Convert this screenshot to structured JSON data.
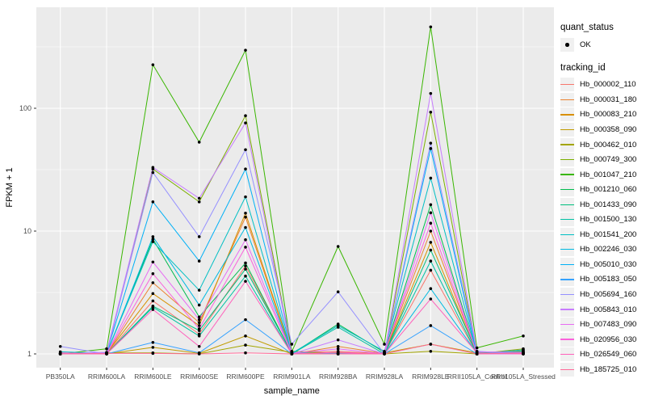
{
  "chart_data": {
    "type": "line",
    "title": "",
    "xlabel": "sample_name",
    "ylabel": "FPKM + 1",
    "y_scale": "log10",
    "y_ticks": [
      1,
      10,
      100
    ],
    "y_minor_ticks": [
      3.162,
      31.62,
      316.2
    ],
    "ylim": [
      0.88,
      550
    ],
    "grid": true,
    "panel_bg": "#EBEBEB",
    "grid_color": "#FFFFFF",
    "point_color": "#000000",
    "axis_text_color": "#4D4D4D",
    "legend_position": "right",
    "categories": [
      "PB350LA",
      "RRIM600LA",
      "RRIM600LE",
      "RRIM600SE",
      "RRIM600PE",
      "RRIM901LA",
      "RRIM928BA",
      "RRIM928LA",
      "RRIM928LE",
      "RRII105LA_Control",
      "RRII105LA_Stressed"
    ],
    "series": [
      {
        "name": "Hb_000002_110",
        "color": "#F8766D",
        "values": [
          1.0,
          1.0,
          2.7,
          1.45,
          5.2,
          1.02,
          1.05,
          1.0,
          4.8,
          1.0,
          1.01
        ]
      },
      {
        "name": "Hb_000031_180",
        "color": "#EA8331",
        "values": [
          1.01,
          1.0,
          3.8,
          1.8,
          13.0,
          1.0,
          1.15,
          1.01,
          10.0,
          1.01,
          1.0
        ]
      },
      {
        "name": "Hb_000083_210",
        "color": "#D89000",
        "values": [
          1.0,
          1.01,
          3.1,
          1.7,
          14.0,
          1.01,
          1.0,
          1.0,
          8.1,
          1.0,
          1.02
        ]
      },
      {
        "name": "Hb_000358_090",
        "color": "#C09B00",
        "values": [
          1.02,
          1.0,
          1.13,
          1.01,
          1.4,
          1.0,
          1.02,
          1.02,
          1.2,
          1.02,
          1.06
        ]
      },
      {
        "name": "Hb_000462_010",
        "color": "#A3A500",
        "values": [
          1.0,
          1.02,
          1.02,
          1.0,
          1.18,
          1.03,
          1.0,
          1.0,
          1.05,
          1.0,
          1.1
        ]
      },
      {
        "name": "Hb_000749_300",
        "color": "#7CAE00",
        "values": [
          1.01,
          1.0,
          32.0,
          17.3,
          87.0,
          1.05,
          1.01,
          1.0,
          93.0,
          1.0,
          1.0
        ]
      },
      {
        "name": "Hb_001047_210",
        "color": "#39B600",
        "values": [
          1.0,
          1.1,
          226,
          53.0,
          297,
          1.04,
          7.5,
          1.2,
          460,
          1.12,
          1.4
        ]
      },
      {
        "name": "Hb_001210_060",
        "color": "#00BB4E",
        "values": [
          1.0,
          1.01,
          8.6,
          2.0,
          5.5,
          1.0,
          1.75,
          1.03,
          16.4,
          1.0,
          1.03
        ]
      },
      {
        "name": "Hb_001433_090",
        "color": "#00BF7D",
        "values": [
          1.01,
          1.0,
          2.45,
          1.55,
          4.9,
          1.02,
          1.0,
          1.0,
          7.0,
          1.03,
          1.0
        ]
      },
      {
        "name": "Hb_001500_130",
        "color": "#00C1A3",
        "values": [
          1.0,
          1.0,
          2.4,
          1.4,
          4.3,
          1.0,
          1.65,
          1.0,
          5.7,
          1.0,
          1.05
        ]
      },
      {
        "name": "Hb_001541_200",
        "color": "#00BFC4",
        "values": [
          1.04,
          1.01,
          8.2,
          3.3,
          19.0,
          1.01,
          1.7,
          1.05,
          27.0,
          1.0,
          1.08
        ]
      },
      {
        "name": "Hb_002246_030",
        "color": "#00BAE0",
        "values": [
          1.0,
          1.0,
          9.0,
          2.5,
          10.7,
          1.0,
          1.0,
          1.0,
          3.4,
          1.01,
          1.0
        ]
      },
      {
        "name": "Hb_005010_030",
        "color": "#00B0F6",
        "values": [
          1.0,
          1.02,
          17.3,
          5.7,
          32.0,
          1.02,
          1.0,
          1.01,
          47.0,
          1.0,
          1.01
        ]
      },
      {
        "name": "Hb_005183_050",
        "color": "#35A2FF",
        "values": [
          1.0,
          1.0,
          1.24,
          1.02,
          1.9,
          1.0,
          1.01,
          1.0,
          1.7,
          1.0,
          1.0
        ]
      },
      {
        "name": "Hb_005694_160",
        "color": "#9590FF",
        "values": [
          1.15,
          1.0,
          30.0,
          9.0,
          46.0,
          1.2,
          3.2,
          1.0,
          52.0,
          1.05,
          1.0
        ]
      },
      {
        "name": "Hb_005843_010",
        "color": "#C77CFF",
        "values": [
          1.0,
          1.03,
          33.0,
          18.5,
          76.0,
          1.0,
          1.3,
          1.0,
          132,
          1.04,
          1.03
        ]
      },
      {
        "name": "Hb_007483_090",
        "color": "#E76BF3",
        "values": [
          1.0,
          1.0,
          5.6,
          1.9,
          8.5,
          1.01,
          1.1,
          1.0,
          14.1,
          1.0,
          1.0
        ]
      },
      {
        "name": "Hb_020956_030",
        "color": "#FA62DB",
        "values": [
          1.02,
          1.0,
          4.5,
          1.6,
          7.4,
          1.0,
          1.0,
          1.02,
          11.6,
          1.0,
          1.01
        ]
      },
      {
        "name": "Hb_026549_060",
        "color": "#FF62BC",
        "values": [
          1.0,
          1.0,
          2.3,
          1.15,
          3.9,
          1.0,
          1.03,
          1.0,
          2.8,
          1.02,
          1.0
        ]
      },
      {
        "name": "Hb_185725_010",
        "color": "#FF6A98",
        "values": [
          1.0,
          1.01,
          1.01,
          1.0,
          1.02,
          1.0,
          1.0,
          1.0,
          1.2,
          1.0,
          1.02
        ]
      }
    ]
  },
  "legend": {
    "quant_status_title": "quant_status",
    "quant_status_items": [
      {
        "label": "OK",
        "marker": "point"
      }
    ],
    "tracking_title": "tracking_id"
  }
}
